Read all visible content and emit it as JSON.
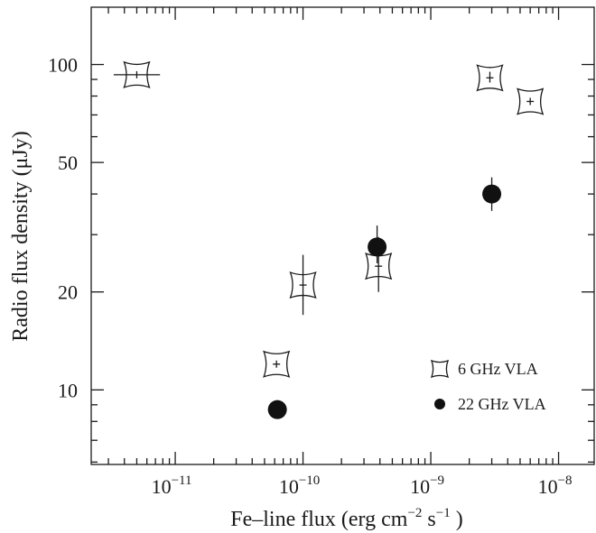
{
  "chart_data": {
    "type": "scatter",
    "title": "",
    "xlabel": {
      "main": "Fe–line flux (erg cm",
      "exp1": "−2",
      "mid": " s",
      "exp2": "−1",
      "end": " )"
    },
    "ylabel": "Radio flux density (μJy)",
    "x_scale": "log",
    "y_scale": "log",
    "xlim": [
      2.2e-12,
      1.9e-08
    ],
    "ylim": [
      5.9,
      150
    ],
    "x_ticks": [
      {
        "value": 1e-11,
        "base": "10",
        "exp": "−11"
      },
      {
        "value": 1e-10,
        "base": "10",
        "exp": "−10"
      },
      {
        "value": 1e-09,
        "base": "10",
        "exp": "−9"
      },
      {
        "value": 1e-08,
        "base": "10",
        "exp": "−8"
      }
    ],
    "y_ticks": [
      {
        "value": 10,
        "label": "10"
      },
      {
        "value": 20,
        "label": "20"
      },
      {
        "value": 50,
        "label": "50"
      },
      {
        "value": 100,
        "label": "100"
      }
    ],
    "grid": false,
    "legend_position": "bottom-right",
    "series": [
      {
        "name": "6 GHz VLA",
        "marker": "concave-star",
        "points": [
          {
            "x": 5e-12,
            "y": 93,
            "xlo": 3.3e-12,
            "xhi": 7.6e-12,
            "ylo": 93,
            "yhi": 93
          },
          {
            "x": 6.2e-11,
            "y": 12,
            "xlo": 6.2e-11,
            "xhi": 6.2e-11,
            "ylo": 12,
            "yhi": 12
          },
          {
            "x": 1e-10,
            "y": 21,
            "xlo": 1e-10,
            "xhi": 1e-10,
            "ylo": 17,
            "yhi": 26
          },
          {
            "x": 3.9e-10,
            "y": 24,
            "xlo": 3.9e-10,
            "xhi": 3.9e-10,
            "ylo": 20,
            "yhi": 29.5
          },
          {
            "x": 2.9e-09,
            "y": 91,
            "xlo": 2.9e-09,
            "xhi": 2.9e-09,
            "ylo": 88,
            "yhi": 95
          },
          {
            "x": 6e-09,
            "y": 77,
            "xlo": 6e-09,
            "xhi": 6e-09,
            "ylo": 77,
            "yhi": 77
          }
        ]
      },
      {
        "name": "22 GHz VLA",
        "marker": "filled-circle",
        "points": [
          {
            "x": 6.3e-11,
            "y": 8.7,
            "ylo": 8.7,
            "yhi": 8.7
          },
          {
            "x": 3.8e-10,
            "y": 27.5,
            "ylo": 24.5,
            "yhi": 32
          },
          {
            "x": 3e-09,
            "y": 40,
            "ylo": 35.5,
            "yhi": 45
          }
        ]
      }
    ]
  }
}
